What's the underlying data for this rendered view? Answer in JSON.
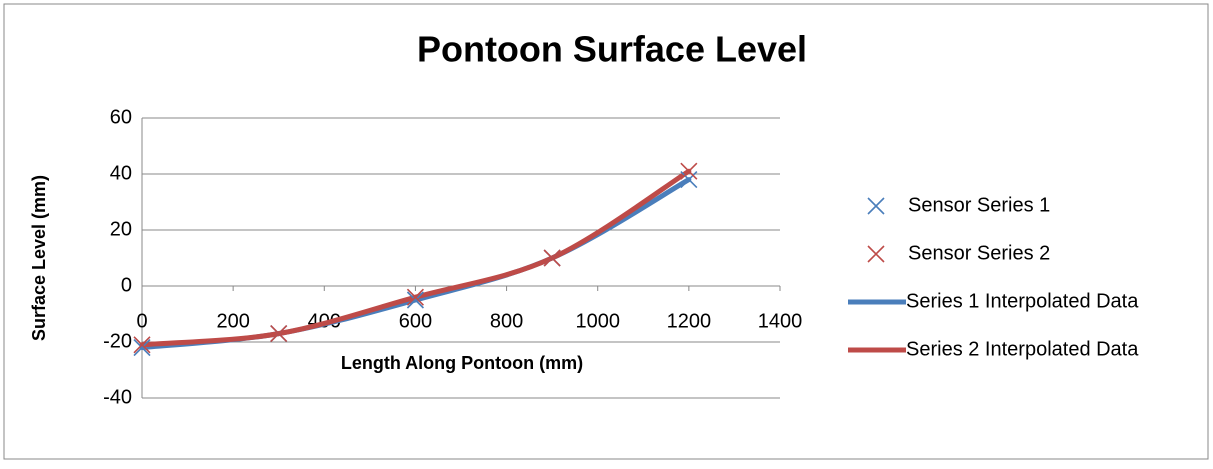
{
  "chart_data": {
    "type": "scatter",
    "title": "Pontoon Surface Level",
    "x_label": "Length Along Pontoon (mm)",
    "y_label": "Surface Level (mm)",
    "xlim": [
      0,
      1400
    ],
    "xticks": [
      0,
      200,
      400,
      600,
      800,
      1000,
      1200,
      1400
    ],
    "ylim": [
      -40,
      60
    ],
    "yticks": [
      -40,
      -20,
      0,
      20,
      40,
      60
    ],
    "grid": true,
    "legend": "right",
    "series": [
      {
        "name": "Sensor Series 1",
        "color": "#4a7ebb",
        "style": "marker",
        "x": [
          0,
          300,
          600,
          900,
          1200
        ],
        "values": [
          -22,
          -17,
          -5,
          10,
          38
        ]
      },
      {
        "name": "Sensor Series 2",
        "color": "#be4b48",
        "style": "marker",
        "x": [
          0,
          300,
          600,
          900,
          1200
        ],
        "values": [
          -21,
          -17,
          -4,
          10,
          41
        ]
      },
      {
        "name": "Series 1 Interpolated Data",
        "color": "#4a7ebb",
        "style": "line",
        "x": [
          0,
          300,
          600,
          900,
          1200
        ],
        "values": [
          -22,
          -17,
          -5,
          10,
          38
        ]
      },
      {
        "name": "Series 2 Interpolated Data",
        "color": "#be4b48",
        "style": "line",
        "x": [
          0,
          300,
          600,
          900,
          1200
        ],
        "values": [
          -21,
          -17,
          -4,
          10,
          41
        ]
      }
    ]
  }
}
